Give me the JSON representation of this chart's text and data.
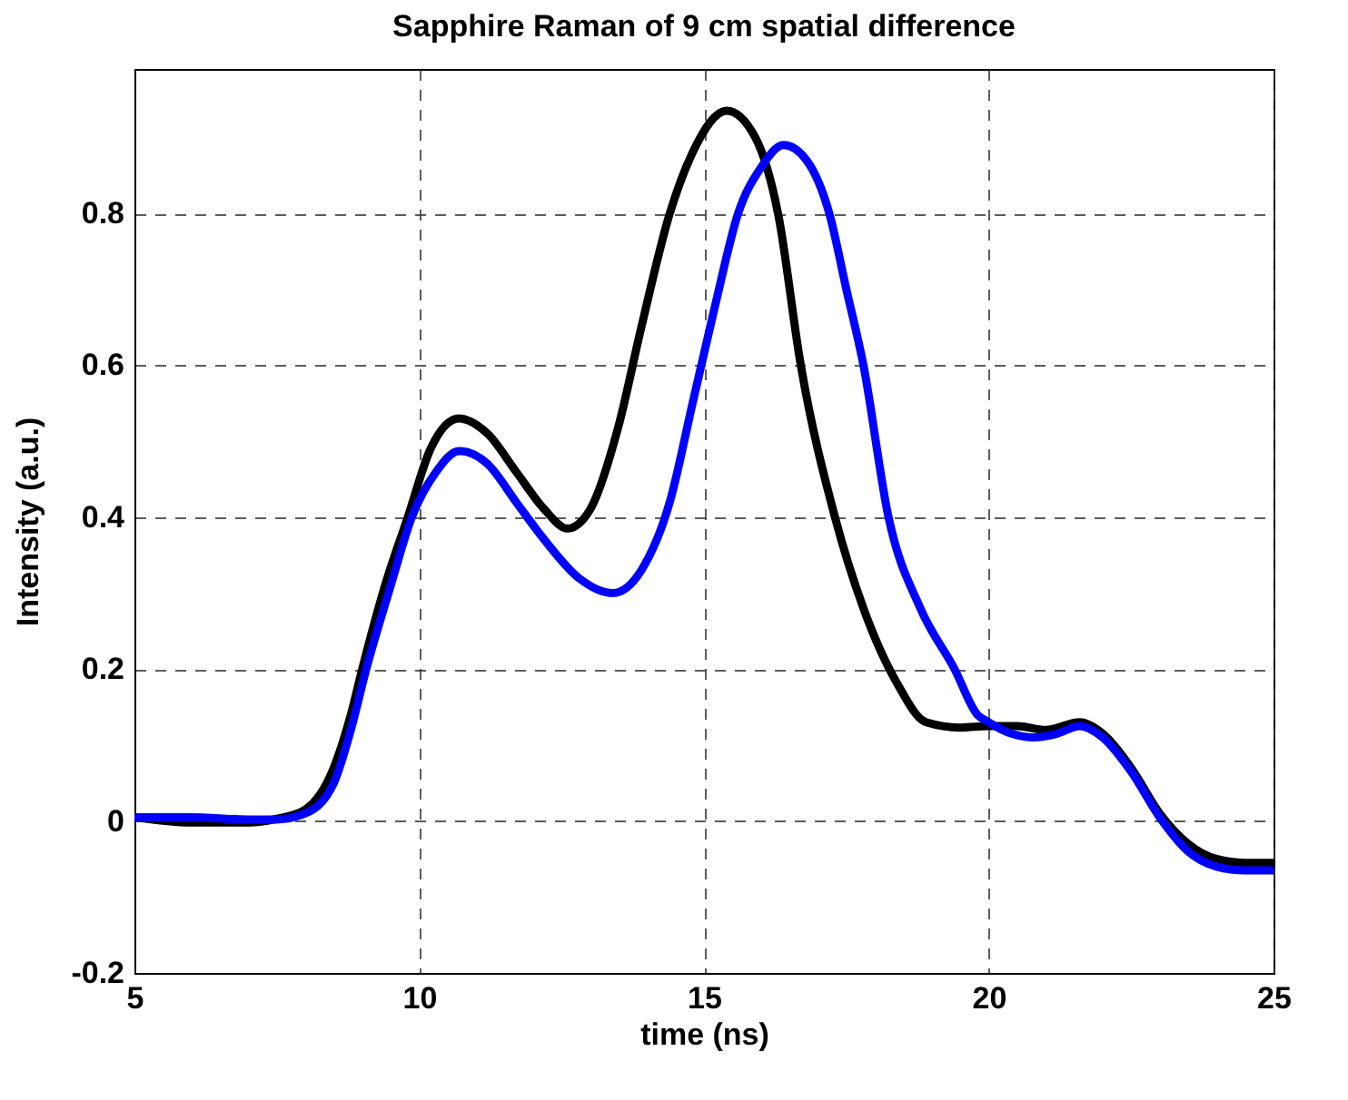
{
  "chart_data": {
    "type": "line",
    "title": "Sapphire Raman of 9 cm spatial difference",
    "xlabel": "time (ns)",
    "ylabel": "Intensity (a.u.)",
    "xlim": [
      5,
      25
    ],
    "xticks": [
      5,
      10,
      15,
      20,
      25
    ],
    "ylim": [
      -0.2,
      0.99
    ],
    "yticks": [
      -0.2,
      0,
      0.2,
      0.4,
      0.6,
      0.8
    ],
    "grid": true,
    "line_style": "solid",
    "series": [
      {
        "color": "#000000",
        "x": [
          5,
          6,
          7,
          7.5,
          8,
          8.5,
          8.8,
          9,
          9.4,
          9.8,
          10.2,
          10.7,
          11.2,
          11.7,
          12.2,
          12.6,
          13,
          13.5,
          13.9,
          14.4,
          14.8,
          15.4,
          15.9,
          16.3,
          16.7,
          17.3,
          17.8,
          18.4,
          18.9,
          19.5,
          20,
          20.5,
          21,
          21.6,
          22,
          22.5,
          23,
          23.5,
          24,
          24.5,
          25
        ],
        "values": [
          0.005,
          -0.002,
          -0.002,
          0.003,
          0.015,
          0.07,
          0.14,
          0.2,
          0.31,
          0.4,
          0.49,
          0.53,
          0.51,
          0.46,
          0.41,
          0.385,
          0.41,
          0.52,
          0.65,
          0.8,
          0.88,
          0.935,
          0.9,
          0.8,
          0.6,
          0.4,
          0.28,
          0.18,
          0.13,
          0.123,
          0.125,
          0.125,
          0.12,
          0.13,
          0.115,
          0.07,
          0.01,
          -0.03,
          -0.05,
          -0.055,
          -0.055
        ]
      },
      {
        "color": "#0000ff",
        "x": [
          5,
          6,
          7,
          7.5,
          8,
          8.5,
          8.8,
          9.07,
          9.5,
          9.87,
          10.3,
          10.7,
          11.2,
          11.7,
          12.2,
          12.8,
          13.4,
          13.9,
          14.4,
          14.8,
          15.2,
          15.6,
          16,
          16.4,
          16.8,
          17.2,
          17.5,
          17.8,
          18.24,
          18.8,
          19.4,
          19.8,
          20,
          20.4,
          20.8,
          21.2,
          21.6,
          22,
          22.5,
          23,
          23.5,
          24,
          24.5,
          25
        ],
        "values": [
          0.005,
          0.005,
          0.002,
          0.002,
          0.01,
          0.05,
          0.12,
          0.2,
          0.31,
          0.4,
          0.46,
          0.487,
          0.47,
          0.42,
          0.37,
          0.32,
          0.3,
          0.33,
          0.42,
          0.55,
          0.68,
          0.8,
          0.86,
          0.89,
          0.87,
          0.8,
          0.7,
          0.6,
          0.4,
          0.28,
          0.2,
          0.14,
          0.13,
          0.115,
          0.11,
          0.115,
          0.125,
          0.11,
          0.065,
          0.005,
          -0.04,
          -0.06,
          -0.065,
          -0.065
        ]
      }
    ]
  }
}
